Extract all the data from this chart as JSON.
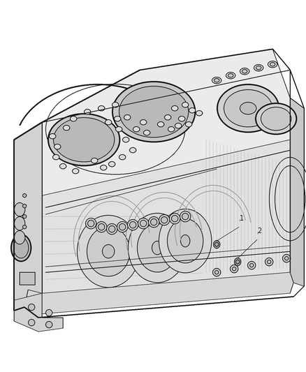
{
  "background_color": "#ffffff",
  "figure_width": 4.38,
  "figure_height": 5.33,
  "dpi": 100,
  "label1_text": "1",
  "label2_text": "2",
  "line_color": "#1a1a1a",
  "label_fontsize": 7,
  "engine_color_top": "#f0f0f0",
  "engine_color_front": "#e8e8e8",
  "engine_color_right": "#e0e0e0",
  "engine_color_left": "#d8d8d8"
}
